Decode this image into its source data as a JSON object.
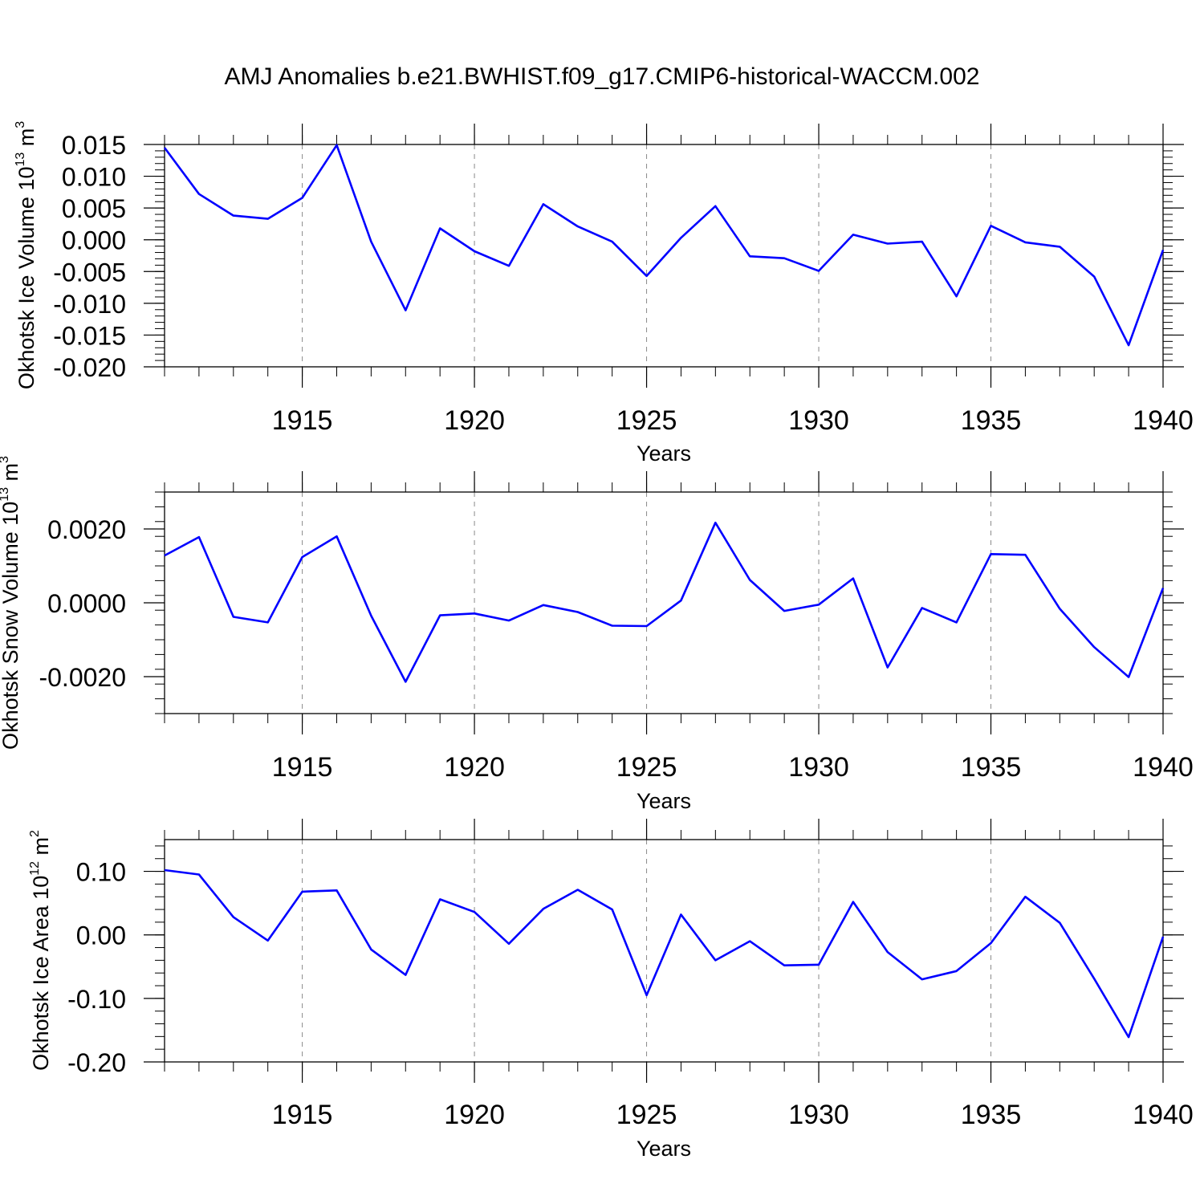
{
  "title": "AMJ Anomalies b.e21.BWHIST.f09_g17.CMIP6-historical-WACCM.002",
  "colors": {
    "line": "#0000ff",
    "axis": "#000000",
    "grid": "#8a8a8a"
  },
  "chart_data": [
    {
      "type": "line",
      "ylabel": {
        "text": "Okhotsk Ice Volume 10",
        "sup1": "13",
        "mid": " m",
        "sup2": "3"
      },
      "xlabel": "Years",
      "xlim": [
        1911,
        1940
      ],
      "ylim": [
        -0.02,
        0.015
      ],
      "xticks": [
        1915,
        1920,
        1925,
        1930,
        1935,
        1940
      ],
      "xtick_labels": [
        "1915",
        "1920",
        "1925",
        "1930",
        "1935",
        "1940"
      ],
      "yticks": [
        -0.02,
        -0.015,
        -0.01,
        -0.005,
        0.0,
        0.005,
        0.01,
        0.015
      ],
      "ytick_labels": [
        "-0.020",
        "-0.015",
        "-0.010",
        "-0.005",
        "0.000",
        "0.005",
        "0.010",
        "0.015"
      ],
      "grid": "vertical dashed at major x ticks",
      "x": [
        1911,
        1912,
        1913,
        1914,
        1915,
        1916,
        1917,
        1918,
        1919,
        1920,
        1921,
        1922,
        1923,
        1924,
        1925,
        1926,
        1927,
        1928,
        1929,
        1930,
        1931,
        1932,
        1933,
        1934,
        1935,
        1936,
        1937,
        1938,
        1939,
        1940
      ],
      "y": [
        0.0145,
        0.0072,
        0.0038,
        0.0033,
        0.0066,
        0.0149,
        -0.0003,
        -0.0111,
        0.0018,
        -0.0018,
        -0.0041,
        0.0056,
        0.0021,
        -0.0003,
        -0.0057,
        0.0003,
        0.0053,
        -0.0026,
        -0.0029,
        -0.0049,
        0.0008,
        -0.0006,
        -0.0003,
        -0.0089,
        0.0022,
        -0.0004,
        -0.0011,
        -0.0058,
        -0.0166,
        -0.0016
      ]
    },
    {
      "type": "line",
      "ylabel": {
        "text": "Okhotsk Snow Volume 10",
        "sup1": "13",
        "mid": " m",
        "sup2": "3"
      },
      "xlabel": "Years",
      "xlim": [
        1911,
        1940
      ],
      "ylim": [
        -0.003,
        0.003
      ],
      "xticks": [
        1915,
        1920,
        1925,
        1930,
        1935,
        1940
      ],
      "xtick_labels": [
        "1915",
        "1920",
        "1925",
        "1930",
        "1935",
        "1940"
      ],
      "yticks": [
        -0.002,
        0.0,
        0.002
      ],
      "ytick_labels": [
        "-0.0020",
        "0.0000",
        "0.0020"
      ],
      "grid": "vertical dashed at major x ticks",
      "x": [
        1911,
        1912,
        1913,
        1914,
        1915,
        1916,
        1917,
        1918,
        1919,
        1920,
        1921,
        1922,
        1923,
        1924,
        1925,
        1926,
        1927,
        1928,
        1929,
        1930,
        1931,
        1932,
        1933,
        1934,
        1935,
        1936,
        1937,
        1938,
        1939,
        1940
      ],
      "y": [
        0.00128,
        0.00178,
        -0.00038,
        -0.00053,
        0.00124,
        0.0018,
        -0.00035,
        -0.00214,
        -0.00034,
        -0.00029,
        -0.00048,
        -6e-05,
        -0.00025,
        -0.00062,
        -0.00063,
        6e-05,
        0.00217,
        0.00062,
        -0.00022,
        -5e-05,
        0.00066,
        -0.00175,
        -0.00014,
        -0.00053,
        0.00132,
        0.0013,
        -0.00016,
        -0.0012,
        -0.00201,
        0.0004
      ]
    },
    {
      "type": "line",
      "ylabel": {
        "text": "Okhotsk Ice Area 10",
        "sup1": "12",
        "mid": " m",
        "sup2": "2"
      },
      "xlabel": "Years",
      "xlim": [
        1911,
        1940
      ],
      "ylim": [
        -0.2,
        0.15
      ],
      "xticks": [
        1915,
        1920,
        1925,
        1930,
        1935,
        1940
      ],
      "xtick_labels": [
        "1915",
        "1920",
        "1925",
        "1930",
        "1935",
        "1940"
      ],
      "yticks": [
        -0.2,
        -0.1,
        0.0,
        0.1
      ],
      "ytick_labels": [
        "-0.20",
        "-0.10",
        "0.00",
        "0.10"
      ],
      "grid": "vertical dashed at major x ticks",
      "x": [
        1911,
        1912,
        1913,
        1914,
        1915,
        1916,
        1917,
        1918,
        1919,
        1920,
        1921,
        1922,
        1923,
        1924,
        1925,
        1926,
        1927,
        1928,
        1929,
        1930,
        1931,
        1932,
        1933,
        1934,
        1935,
        1936,
        1937,
        1938,
        1939,
        1940
      ],
      "y": [
        0.102,
        0.095,
        0.028,
        -0.009,
        0.068,
        0.07,
        -0.023,
        -0.063,
        0.056,
        0.036,
        -0.014,
        0.041,
        0.071,
        0.04,
        -0.095,
        0.032,
        -0.04,
        -0.01,
        -0.048,
        -0.047,
        0.052,
        -0.027,
        -0.07,
        -0.057,
        -0.013,
        0.06,
        0.019,
        -0.069,
        -0.161,
        -0.003
      ]
    }
  ]
}
